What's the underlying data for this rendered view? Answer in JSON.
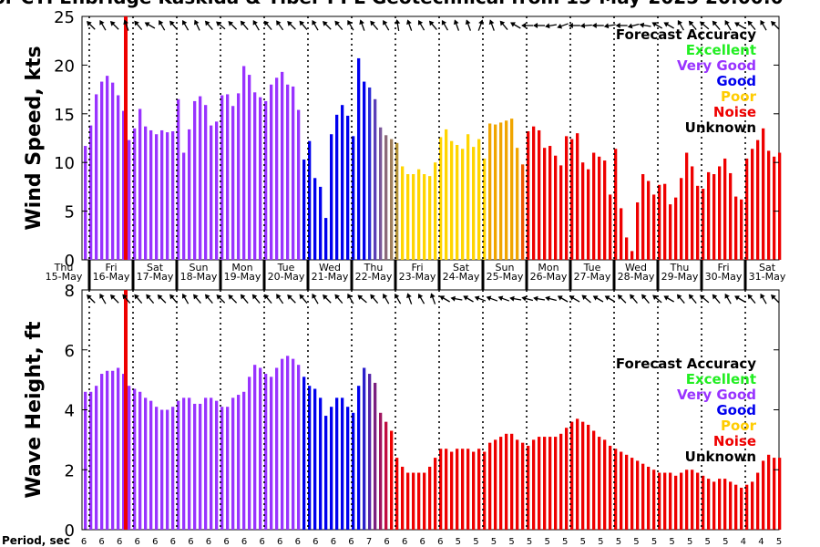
{
  "title": "or CTI Enbridge  Kaskida & Tiber PPL Geotechnical from 15-May-2025 20:00:0",
  "legend": {
    "heading": "Forecast Accuracy",
    "items": [
      {
        "label": "Excellent",
        "color": "#22ee22"
      },
      {
        "label": "Very Good",
        "color": "#9933ff"
      },
      {
        "label": "Good",
        "color": "#0000ee"
      },
      {
        "label": "Poor",
        "color": "#ffcc00"
      },
      {
        "label": "Noise",
        "color": "#ee0000"
      },
      {
        "label": "Unknown",
        "color": "#000000"
      }
    ]
  },
  "day_labels": [
    {
      "day": "Thu",
      "date": "15-May"
    },
    {
      "day": "Fri",
      "date": "16-May"
    },
    {
      "day": "Sat",
      "date": "17-May"
    },
    {
      "day": "Sun",
      "date": "18-May"
    },
    {
      "day": "Mon",
      "date": "19-May"
    },
    {
      "day": "Tue",
      "date": "20-May"
    },
    {
      "day": "Wed",
      "date": "21-May"
    },
    {
      "day": "Thu",
      "date": "22-May"
    },
    {
      "day": "Fri",
      "date": "23-May"
    },
    {
      "day": "Sat",
      "date": "24-May"
    },
    {
      "day": "Sun",
      "date": "25-May"
    },
    {
      "day": "Mon",
      "date": "26-May"
    },
    {
      "day": "Tue",
      "date": "27-May"
    },
    {
      "day": "Wed",
      "date": "28-May"
    },
    {
      "day": "Thu",
      "date": "29-May"
    },
    {
      "day": "Fri",
      "date": "30-May"
    },
    {
      "day": "Sat",
      "date": "31-May"
    }
  ],
  "period_axis_label": "Period, sec",
  "period_values": [
    6,
    6,
    6,
    6,
    6,
    6,
    6,
    6,
    6,
    6,
    6,
    6,
    6,
    6,
    6,
    6,
    7,
    6,
    6,
    6,
    6,
    5,
    5,
    5,
    5,
    5,
    5,
    5,
    5,
    5,
    5,
    5,
    5,
    5,
    5,
    5,
    5,
    4,
    4,
    5
  ],
  "chart_data": [
    {
      "type": "bar",
      "name": "wind-speed",
      "ylabel": "Wind Speed, kts",
      "ylim": [
        0,
        25
      ],
      "yticks": [
        0,
        5,
        10,
        15,
        20,
        25
      ],
      "x_unit": "hours from 15-May 20:00",
      "bar_interval_hours": 3,
      "values": [
        11.7,
        13.8,
        17.0,
        18.3,
        18.9,
        18.2,
        16.9,
        15.3,
        12.3,
        13.5,
        15.5,
        13.7,
        13.3,
        12.9,
        13.3,
        13.1,
        13.2,
        16.5,
        11.0,
        13.4,
        16.3,
        16.8,
        15.9,
        13.8,
        14.2,
        16.9,
        17.0,
        15.8,
        17.1,
        19.9,
        19.0,
        17.2,
        16.7,
        16.3,
        18.0,
        18.7,
        19.3,
        18.0,
        17.8,
        15.4,
        10.3,
        12.2,
        8.4,
        7.5,
        4.3,
        12.9,
        14.9,
        15.9,
        14.8,
        12.7,
        20.7,
        18.3,
        17.7,
        16.5,
        13.6,
        12.8,
        12.4,
        12.0,
        9.6,
        8.8,
        8.8,
        9.3,
        8.8,
        8.6,
        10.0,
        12.6,
        13.4,
        12.2,
        11.8,
        11.4,
        12.9,
        11.6,
        12.4,
        10.4,
        14.0,
        13.9,
        14.1,
        14.3,
        14.5,
        11.5,
        9.8,
        13.2,
        13.7,
        13.3,
        11.5,
        11.7,
        10.7,
        9.7,
        12.7,
        12.4,
        13.0,
        10.0,
        9.3,
        11.0,
        10.6,
        10.2,
        6.7,
        11.4,
        5.3,
        2.3,
        0.9,
        5.9,
        8.8,
        8.1,
        6.7,
        7.7,
        7.8,
        5.7,
        6.4,
        8.4,
        11.0,
        9.6,
        7.6,
        7.3,
        9.0,
        8.8,
        9.6,
        10.4,
        8.9,
        6.5,
        6.2,
        10.4,
        11.4,
        12.3,
        13.5,
        11.2,
        10.6,
        11.0
      ],
      "colors": [
        "#9933ff",
        "#9933ff",
        "#9933ff",
        "#9933ff",
        "#9933ff",
        "#9933ff",
        "#9933ff",
        "#9933ff",
        "#9933ff",
        "#9933ff",
        "#9933ff",
        "#9933ff",
        "#9933ff",
        "#9933ff",
        "#9933ff",
        "#9933ff",
        "#9933ff",
        "#9933ff",
        "#9933ff",
        "#9933ff",
        "#9933ff",
        "#9933ff",
        "#9933ff",
        "#9933ff",
        "#9933ff",
        "#9933ff",
        "#9933ff",
        "#9933ff",
        "#9933ff",
        "#9933ff",
        "#9933ff",
        "#9933ff",
        "#9933ff",
        "#9933ff",
        "#9933ff",
        "#9933ff",
        "#9933ff",
        "#9933ff",
        "#9933ff",
        "#9933ff",
        "#0000ee",
        "#0000ee",
        "#0000ee",
        "#0000ee",
        "#0000ee",
        "#0000ee",
        "#0000ee",
        "#0000ee",
        "#0000ee",
        "#0000ee",
        "#0000ee",
        "#0000ee",
        "#2a2ad6",
        "#5a3fb8",
        "#7a5799",
        "#8b6a7a",
        "#9f7f5c",
        "#b69437",
        "#ffd500",
        "#ffd500",
        "#ffd500",
        "#ffd500",
        "#ffd500",
        "#ffd500",
        "#ffd500",
        "#ffd500",
        "#ffd500",
        "#ffd500",
        "#ffd500",
        "#ffd500",
        "#ffd500",
        "#ffd500",
        "#ffd500",
        "#ffd500",
        "#f0a500",
        "#f0a500",
        "#f0a500",
        "#f0a500",
        "#f0a500",
        "#f0a500",
        "#ee5500",
        "#ee0000",
        "#ee0000",
        "#ee0000",
        "#ee0000",
        "#ee0000",
        "#ee0000",
        "#ee0000",
        "#ee0000",
        "#ee0000",
        "#ee0000",
        "#ee0000",
        "#ee0000",
        "#ee0000",
        "#ee0000",
        "#ee0000",
        "#ee0000",
        "#ee0000",
        "#ee0000",
        "#ee0000",
        "#ee0000",
        "#ee0000",
        "#ee0000",
        "#ee0000",
        "#ee0000",
        "#ee0000",
        "#ee0000",
        "#ee0000",
        "#ee0000",
        "#ee0000",
        "#ee0000",
        "#ee0000",
        "#ee0000",
        "#ee0000",
        "#ee0000",
        "#ee0000",
        "#ee0000",
        "#ee0000",
        "#ee0000",
        "#ee0000",
        "#ee0000",
        "#ee0000",
        "#ee0000",
        "#ee0000",
        "#ee0000",
        "#ee0000",
        "#ee0000",
        "#ee0000"
      ]
    },
    {
      "type": "bar",
      "name": "wave-height",
      "ylabel": "Wave Height, ft",
      "ylim": [
        0,
        8
      ],
      "yticks": [
        0,
        2,
        4,
        6,
        8
      ],
      "x_unit": "hours from 15-May 20:00",
      "bar_interval_hours": 3,
      "values": [
        4.6,
        4.6,
        4.8,
        5.2,
        5.3,
        5.3,
        5.4,
        5.2,
        4.8,
        4.7,
        4.6,
        4.4,
        4.3,
        4.1,
        4.0,
        4.0,
        4.1,
        4.3,
        4.4,
        4.4,
        4.2,
        4.2,
        4.4,
        4.4,
        4.3,
        4.1,
        4.1,
        4.4,
        4.5,
        4.6,
        5.1,
        5.5,
        5.4,
        5.2,
        5.1,
        5.4,
        5.7,
        5.8,
        5.7,
        5.5,
        5.1,
        4.8,
        4.7,
        4.4,
        3.8,
        4.1,
        4.4,
        4.4,
        4.1,
        3.9,
        4.8,
        5.4,
        5.2,
        4.9,
        3.9,
        3.6,
        3.3,
        2.4,
        2.1,
        1.9,
        1.9,
        1.9,
        1.9,
        2.1,
        2.4,
        2.7,
        2.7,
        2.6,
        2.7,
        2.7,
        2.7,
        2.6,
        2.7,
        2.6,
        2.9,
        3.0,
        3.1,
        3.2,
        3.2,
        3.0,
        2.9,
        2.8,
        3.0,
        3.1,
        3.1,
        3.1,
        3.1,
        3.2,
        3.4,
        3.6,
        3.7,
        3.6,
        3.5,
        3.3,
        3.1,
        3.0,
        2.8,
        2.7,
        2.6,
        2.5,
        2.4,
        2.3,
        2.2,
        2.1,
        2.0,
        1.9,
        1.9,
        1.9,
        1.8,
        1.9,
        2.0,
        2.0,
        1.9,
        1.8,
        1.7,
        1.6,
        1.7,
        1.7,
        1.6,
        1.5,
        1.4,
        1.5,
        1.6,
        1.9,
        2.3,
        2.5,
        2.4,
        2.4
      ],
      "colors": [
        "#9933ff",
        "#9933ff",
        "#9933ff",
        "#9933ff",
        "#9933ff",
        "#9933ff",
        "#9933ff",
        "#9933ff",
        "#9933ff",
        "#9933ff",
        "#9933ff",
        "#9933ff",
        "#9933ff",
        "#9933ff",
        "#9933ff",
        "#9933ff",
        "#9933ff",
        "#9933ff",
        "#9933ff",
        "#9933ff",
        "#9933ff",
        "#9933ff",
        "#9933ff",
        "#9933ff",
        "#9933ff",
        "#9933ff",
        "#9933ff",
        "#9933ff",
        "#9933ff",
        "#9933ff",
        "#9933ff",
        "#9933ff",
        "#9933ff",
        "#9933ff",
        "#9933ff",
        "#9933ff",
        "#9933ff",
        "#9933ff",
        "#9933ff",
        "#9933ff",
        "#0000ee",
        "#0000ee",
        "#0000ee",
        "#0000ee",
        "#0000ee",
        "#0000ee",
        "#0000ee",
        "#0000ee",
        "#0000ee",
        "#0000ee",
        "#0000ee",
        "#2a1fcc",
        "#5524a8",
        "#7a2080",
        "#a01660",
        "#c00c40",
        "#ee0000",
        "#ee0000",
        "#ee0000",
        "#ee0000",
        "#ee0000",
        "#ee0000",
        "#ee0000",
        "#ee0000",
        "#ee0000",
        "#ee0000",
        "#ee0000",
        "#ee0000",
        "#ee0000",
        "#ee0000",
        "#ee0000",
        "#ee0000",
        "#ee0000",
        "#ee0000",
        "#ee0000",
        "#ee0000",
        "#ee0000",
        "#ee0000",
        "#ee0000",
        "#ee0000",
        "#ee0000",
        "#ee0000",
        "#ee0000",
        "#ee0000",
        "#ee0000",
        "#ee0000",
        "#ee0000",
        "#ee0000",
        "#ee0000",
        "#ee0000",
        "#ee0000",
        "#ee0000",
        "#ee0000",
        "#ee0000",
        "#ee0000",
        "#ee0000",
        "#ee0000",
        "#ee0000",
        "#ee0000",
        "#ee0000",
        "#ee0000",
        "#ee0000",
        "#ee0000",
        "#ee0000",
        "#ee0000",
        "#ee0000",
        "#ee0000",
        "#ee0000",
        "#ee0000",
        "#ee0000",
        "#ee0000",
        "#ee0000",
        "#ee0000",
        "#ee0000",
        "#ee0000",
        "#ee0000",
        "#ee0000",
        "#ee0000",
        "#ee0000",
        "#ee0000",
        "#ee0000",
        "#ee0000",
        "#ee0000",
        "#ee0000",
        "#ee0000",
        "#ee0000",
        "#ee0000",
        "#ee0000"
      ]
    }
  ],
  "wind_arrow_directions_deg": [
    315,
    330,
    315,
    340,
    320,
    300,
    330,
    320,
    330,
    335,
    320,
    310,
    315,
    320,
    330,
    320,
    325,
    315,
    320,
    330,
    315,
    320,
    330,
    340,
    320,
    330,
    350,
    340,
    330,
    320,
    330,
    340,
    340,
    20,
    340,
    320,
    300,
    270,
    270,
    260,
    250,
    270,
    265,
    270,
    260,
    270,
    255,
    280,
    300,
    300,
    330,
    320,
    310,
    320,
    330,
    300,
    320,
    330,
    315
  ],
  "wave_arrow_directions_deg": [
    315,
    330,
    315,
    320,
    320,
    320,
    315,
    320,
    330,
    320,
    320,
    315,
    315,
    320,
    320,
    320,
    325,
    315,
    320,
    330,
    315,
    320,
    330,
    310,
    320,
    330,
    330,
    340,
    330,
    340,
    300,
    280,
    300,
    290,
    290,
    290,
    280,
    285,
    280,
    285,
    300,
    300,
    310,
    300,
    300,
    315,
    320,
    320,
    310,
    300,
    320,
    320,
    310,
    320,
    330,
    300,
    320,
    330,
    315
  ],
  "now_marker_color": "#ee0000",
  "now_marker_hours": 24
}
